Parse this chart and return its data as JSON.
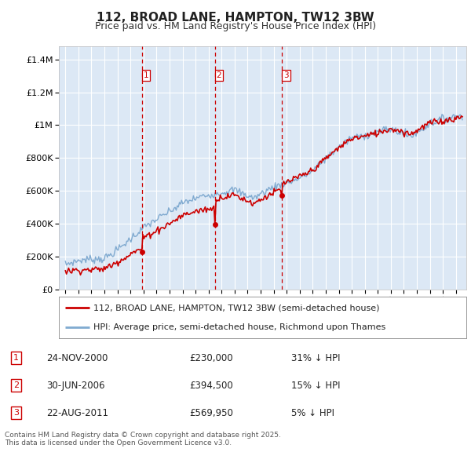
{
  "title": "112, BROAD LANE, HAMPTON, TW12 3BW",
  "subtitle": "Price paid vs. HM Land Registry's House Price Index (HPI)",
  "legend_price": "112, BROAD LANE, HAMPTON, TW12 3BW (semi-detached house)",
  "legend_hpi": "HPI: Average price, semi-detached house, Richmond upon Thames",
  "footer": "Contains HM Land Registry data © Crown copyright and database right 2025.\nThis data is licensed under the Open Government Licence v3.0.",
  "transactions": [
    {
      "num": 1,
      "date": "24-NOV-2000",
      "price": 230000,
      "hpi_diff": "31% ↓ HPI",
      "year": 2000.9
    },
    {
      "num": 2,
      "date": "30-JUN-2006",
      "price": 394500,
      "hpi_diff": "15% ↓ HPI",
      "year": 2006.5
    },
    {
      "num": 3,
      "date": "22-AUG-2011",
      "price": 569950,
      "hpi_diff": "5% ↓ HPI",
      "year": 2011.65
    }
  ],
  "yticks": [
    0,
    200000,
    400000,
    600000,
    800000,
    1000000,
    1200000,
    1400000
  ],
  "ylim": [
    0,
    1480000
  ],
  "xlim_start": 1994.5,
  "xlim_end": 2025.8,
  "plot_bg_color": "#dce8f5",
  "grid_color": "#ffffff",
  "red_line_color": "#cc0000",
  "blue_line_color": "#80aad0",
  "vline_color": "#cc0000",
  "title_fontsize": 11,
  "subtitle_fontsize": 9
}
